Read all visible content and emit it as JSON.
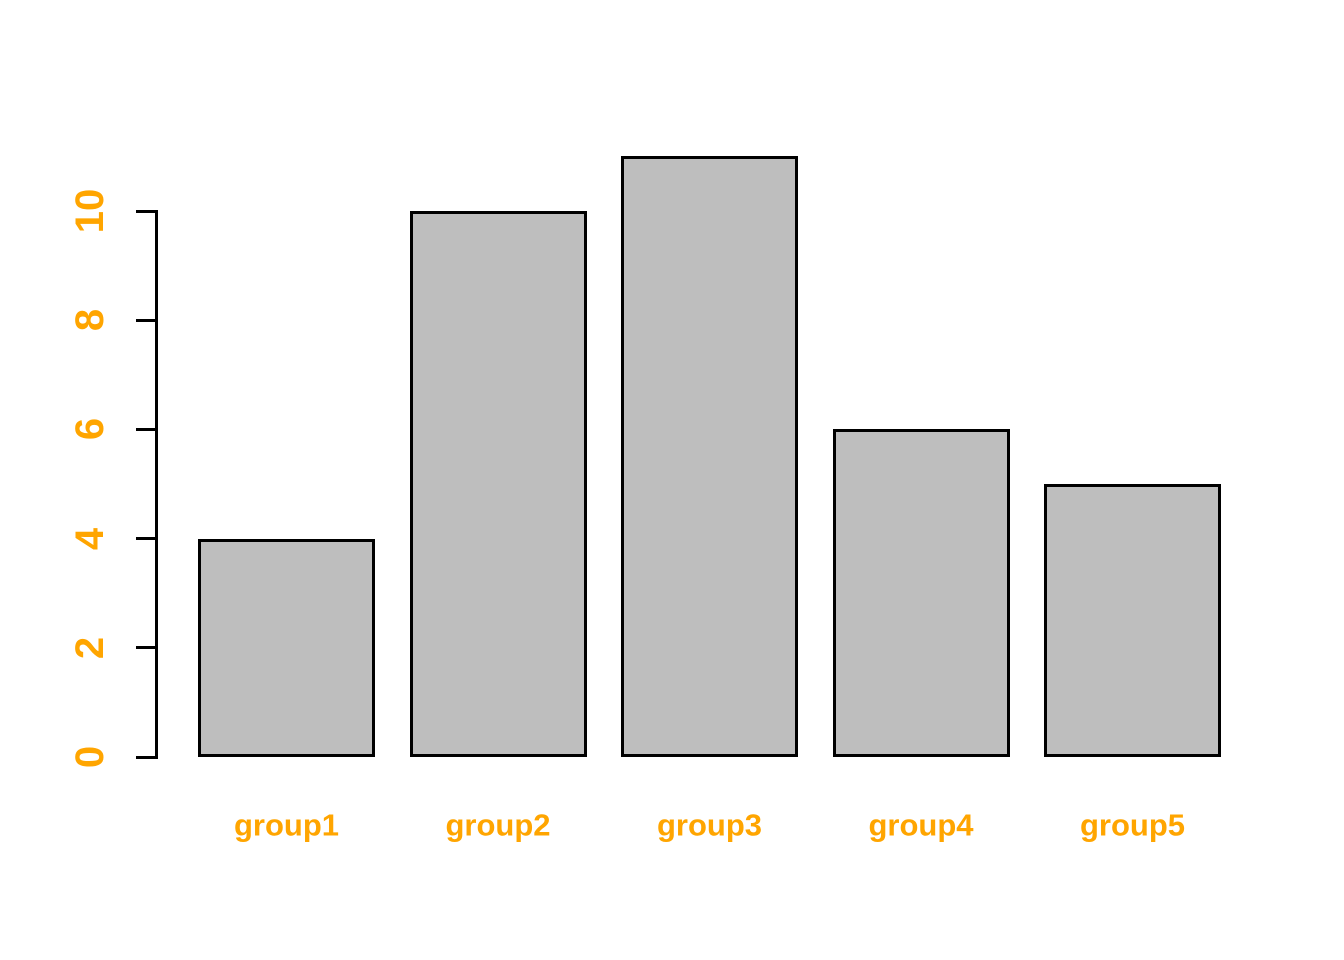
{
  "chart_data": {
    "type": "bar",
    "categories": [
      "group1",
      "group2",
      "group3",
      "group4",
      "group5"
    ],
    "values": [
      4,
      10,
      11,
      6,
      5
    ],
    "title": "",
    "xlabel": "",
    "ylabel": "",
    "yticks": [
      0,
      2,
      4,
      6,
      8,
      10
    ],
    "ylim": [
      0,
      11
    ],
    "grid": false,
    "legend": false,
    "background_color": "#FFFFFF",
    "axis_color": "#000000",
    "tick_label_color": "#FFA500",
    "category_label_color": "#FFA500",
    "bar_fill": "#BEBEBE",
    "bar_border": "#000000"
  }
}
